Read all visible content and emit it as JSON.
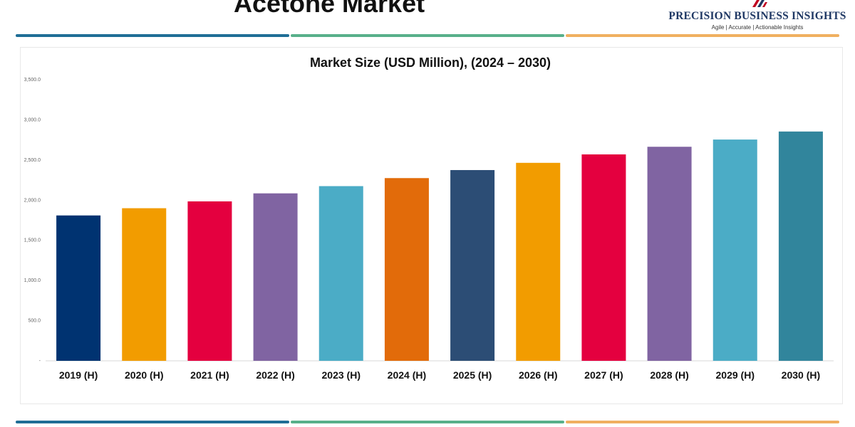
{
  "header": {
    "title": "Acetone Market",
    "brand": "PRECISION BUSINESS INSIGHTS",
    "tagline": "Agile | Accurate | Actionable Insights"
  },
  "colors": {
    "rule_blue": "#1f6e96",
    "rule_green": "#58b08a",
    "rule_orange": "#f0b060"
  },
  "chart_data": {
    "type": "bar",
    "title": "Market Size (USD Million), (2024 – 2030)",
    "xlabel": "",
    "ylabel": "",
    "ylim": [
      0,
      3500
    ],
    "yticks": [
      "-",
      "500.0",
      "1,000.0",
      "1,500.0",
      "2,000.0",
      "2,500.0",
      "3,000.0",
      "3,500.0"
    ],
    "grid": false,
    "categories": [
      "2019 (H)",
      "2020 (H)",
      "2021 (H)",
      "2022 (H)",
      "2023 (H)",
      "2024 (H)",
      "2025 (H)",
      "2026 (H)",
      "2027 (H)",
      "2028 (H)",
      "2029 (H)",
      "2030 (H)"
    ],
    "values": [
      1810,
      1900,
      1985,
      2085,
      2175,
      2275,
      2375,
      2465,
      2570,
      2665,
      2755,
      2855
    ],
    "bar_colors": [
      "#003371",
      "#f29c00",
      "#e4003f",
      "#8064a2",
      "#4bacc6",
      "#e26b0a",
      "#2c4d75",
      "#f29c00",
      "#e4003f",
      "#8064a2",
      "#4bacc6",
      "#31859c"
    ]
  }
}
